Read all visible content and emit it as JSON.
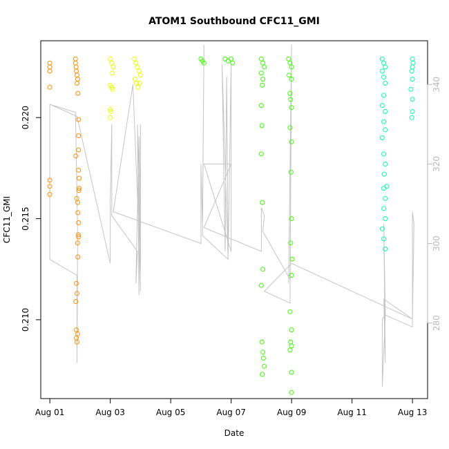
{
  "chart_data": {
    "type": "scatter",
    "title": "ATOM1 Southbound CFC11_GMI",
    "xlabel": "Date",
    "ylabel": "CFC11_GMI",
    "x_ticks": [
      "Aug 01",
      "Aug 03",
      "Aug 05",
      "Aug 07",
      "Aug 09",
      "Aug 11",
      "Aug 13"
    ],
    "x_tick_values": [
      1,
      3,
      5,
      7,
      9,
      11,
      13
    ],
    "y_ticks": [
      "0.210",
      "0.215",
      "0.220"
    ],
    "y_tick_values": [
      0.21,
      0.215,
      0.22
    ],
    "y2_ticks": [
      "280",
      "300",
      "320",
      "340"
    ],
    "y2_tick_values": [
      280,
      300,
      320,
      340
    ],
    "xlim": [
      0.7,
      13.5
    ],
    "ylim": [
      0.2061,
      0.2238
    ],
    "y2lim": [
      261,
      351
    ],
    "colors": {
      "series": [
        "#ff8c00",
        "#e6ff00",
        "#3aff00",
        "#00ffae"
      ],
      "secondary_line": "#c4c4c4"
    },
    "series": [
      {
        "color": "#ff8c00",
        "points": [
          [
            1.0,
            0.2227
          ],
          [
            1.0,
            0.2225
          ],
          [
            1.0,
            0.2223
          ],
          [
            1.0,
            0.2215
          ],
          [
            1.0,
            0.2169
          ],
          [
            1.0,
            0.2166
          ],
          [
            1.0,
            0.2162
          ],
          [
            1.85,
            0.2229
          ],
          [
            1.85,
            0.2227
          ],
          [
            1.87,
            0.2225
          ],
          [
            1.88,
            0.2223
          ],
          [
            1.9,
            0.2221
          ],
          [
            1.92,
            0.2219
          ],
          [
            1.9,
            0.2217
          ],
          [
            1.93,
            0.2212
          ],
          [
            1.95,
            0.2199
          ],
          [
            1.95,
            0.2191
          ],
          [
            1.95,
            0.2184
          ],
          [
            1.95,
            0.2174
          ],
          [
            1.97,
            0.217
          ],
          [
            1.96,
            0.2164
          ],
          [
            1.92,
            0.2158
          ],
          [
            1.93,
            0.2153
          ],
          [
            1.95,
            0.2148
          ],
          [
            1.94,
            0.2142
          ],
          [
            1.92,
            0.2138
          ],
          [
            1.93,
            0.2131
          ],
          [
            1.88,
            0.2118
          ],
          [
            1.9,
            0.2113
          ],
          [
            1.86,
            0.2109
          ],
          [
            1.88,
            0.2091
          ],
          [
            1.9,
            0.2089
          ],
          [
            1.88,
            0.2095
          ],
          [
            1.92,
            0.2093
          ],
          [
            1.95,
            0.2141
          ],
          [
            1.97,
            0.2165
          ],
          [
            1.86,
            0.2181
          ],
          [
            1.89,
            0.216
          ]
        ]
      },
      {
        "color": "#e6ff00",
        "points": [
          [
            3.0,
            0.2229
          ],
          [
            3.05,
            0.2227
          ],
          [
            3.1,
            0.2225
          ],
          [
            3.07,
            0.2222
          ],
          [
            3.0,
            0.2216
          ],
          [
            3.05,
            0.2215
          ],
          [
            3.08,
            0.2214
          ],
          [
            3.0,
            0.2204
          ],
          [
            3.02,
            0.2203
          ],
          [
            3.0,
            0.22
          ],
          [
            3.8,
            0.2229
          ],
          [
            3.85,
            0.2227
          ],
          [
            3.9,
            0.2225
          ],
          [
            3.95,
            0.2223
          ],
          [
            4.0,
            0.2221
          ],
          [
            3.82,
            0.2219
          ],
          [
            3.87,
            0.2217
          ],
          [
            3.92,
            0.2215
          ],
          [
            3.97,
            0.2217
          ]
        ]
      },
      {
        "color": "#3aff00",
        "points": [
          [
            6.0,
            0.2229
          ],
          [
            6.05,
            0.2228
          ],
          [
            6.1,
            0.2227
          ],
          [
            6.8,
            0.2229
          ],
          [
            6.9,
            0.2228
          ],
          [
            7.0,
            0.2229
          ],
          [
            7.05,
            0.2227
          ],
          [
            8.0,
            0.2229
          ],
          [
            8.05,
            0.2227
          ],
          [
            8.1,
            0.2225
          ],
          [
            8.0,
            0.2222
          ],
          [
            8.05,
            0.2219
          ],
          [
            8.03,
            0.2216
          ],
          [
            8.0,
            0.2206
          ],
          [
            8.02,
            0.2196
          ],
          [
            8.0,
            0.2182
          ],
          [
            8.03,
            0.2158
          ],
          [
            8.05,
            0.2125
          ],
          [
            8.0,
            0.2117
          ],
          [
            8.02,
            0.2089
          ],
          [
            8.05,
            0.2084
          ],
          [
            8.07,
            0.2081
          ],
          [
            8.1,
            0.2077
          ],
          [
            8.03,
            0.2073
          ],
          [
            8.9,
            0.2229
          ],
          [
            8.95,
            0.2227
          ],
          [
            9.0,
            0.2225
          ],
          [
            8.92,
            0.2221
          ],
          [
            9.0,
            0.2219
          ],
          [
            8.95,
            0.2212
          ],
          [
            8.97,
            0.2209
          ],
          [
            9.0,
            0.2205
          ],
          [
            8.95,
            0.2195
          ],
          [
            9.0,
            0.2188
          ],
          [
            8.98,
            0.2173
          ],
          [
            9.0,
            0.215
          ],
          [
            8.97,
            0.2138
          ],
          [
            9.02,
            0.213
          ],
          [
            9.0,
            0.2122
          ],
          [
            8.95,
            0.2104
          ],
          [
            9.0,
            0.2095
          ],
          [
            8.97,
            0.2089
          ],
          [
            9.0,
            0.2087
          ],
          [
            8.95,
            0.2085
          ],
          [
            9.0,
            0.2074
          ],
          [
            9.0,
            0.2064
          ]
        ]
      },
      {
        "color": "#00ffae",
        "points": [
          [
            12.0,
            0.2229
          ],
          [
            12.05,
            0.2227
          ],
          [
            12.1,
            0.2225
          ],
          [
            12.0,
            0.2223
          ],
          [
            12.05,
            0.222
          ],
          [
            12.1,
            0.2217
          ],
          [
            12.05,
            0.2211
          ],
          [
            12.0,
            0.2206
          ],
          [
            12.1,
            0.2203
          ],
          [
            12.05,
            0.2198
          ],
          [
            12.1,
            0.2194
          ],
          [
            12.0,
            0.219
          ],
          [
            12.05,
            0.2182
          ],
          [
            12.1,
            0.2177
          ],
          [
            12.07,
            0.2172
          ],
          [
            12.05,
            0.2165
          ],
          [
            12.1,
            0.216
          ],
          [
            12.05,
            0.2155
          ],
          [
            12.1,
            0.215
          ],
          [
            12.0,
            0.2145
          ],
          [
            12.05,
            0.214
          ],
          [
            12.1,
            0.2135
          ],
          [
            12.15,
            0.2166
          ],
          [
            13.0,
            0.2229
          ],
          [
            13.02,
            0.2227
          ],
          [
            13.0,
            0.2225
          ],
          [
            12.98,
            0.2223
          ],
          [
            13.0,
            0.2219
          ],
          [
            12.95,
            0.2214
          ],
          [
            13.0,
            0.2209
          ],
          [
            13.0,
            0.2203
          ],
          [
            12.98,
            0.22
          ]
        ]
      }
    ],
    "secondary_line": {
      "axis": "y2",
      "points": [
        [
          1.0,
          335
        ],
        [
          1.0,
          296
        ],
        [
          1.9,
          292
        ],
        [
          1.9,
          270
        ],
        [
          1.92,
          302
        ],
        [
          1.85,
          333
        ],
        [
          1.0,
          335
        ],
        [
          1.9,
          332
        ],
        [
          3.0,
          295
        ],
        [
          3.0,
          310
        ],
        [
          3.05,
          330
        ],
        [
          3.05,
          307
        ],
        [
          3.9,
          298
        ],
        [
          3.85,
          290
        ],
        [
          3.95,
          327
        ],
        [
          4.0,
          288
        ],
        [
          3.9,
          330
        ],
        [
          3.95,
          287
        ],
        [
          4.0,
          330
        ],
        [
          4.0,
          293
        ],
        [
          3.75,
          340
        ],
        [
          3.1,
          308
        ],
        [
          6.0,
          300
        ],
        [
          6.0,
          320
        ],
        [
          6.05,
          305
        ],
        [
          6.1,
          350
        ],
        [
          6.05,
          302
        ],
        [
          6.9,
          296
        ],
        [
          6.7,
          345
        ],
        [
          6.8,
          298
        ],
        [
          6.85,
          342
        ],
        [
          6.9,
          297
        ],
        [
          7.0,
          345
        ],
        [
          7.0,
          298
        ],
        [
          6.1,
          320
        ],
        [
          7.0,
          320
        ],
        [
          6.1,
          304
        ],
        [
          8.0,
          298
        ],
        [
          8.0,
          309
        ],
        [
          8.1,
          307
        ],
        [
          8.05,
          303
        ],
        [
          8.95,
          291
        ],
        [
          9.0,
          350
        ],
        [
          8.9,
          290
        ],
        [
          9.0,
          350
        ],
        [
          8.95,
          285
        ],
        [
          8.1,
          288
        ],
        [
          9.0,
          295
        ],
        [
          13.0,
          281
        ],
        [
          12.05,
          286
        ],
        [
          12.1,
          270
        ],
        [
          12.05,
          305
        ],
        [
          12.1,
          282
        ],
        [
          12.0,
          264
        ],
        [
          12.0,
          281
        ],
        [
          12.1,
          282
        ],
        [
          13.0,
          279
        ],
        [
          13.0,
          308
        ],
        [
          13.05,
          305
        ],
        [
          13.0,
          281
        ]
      ]
    }
  }
}
